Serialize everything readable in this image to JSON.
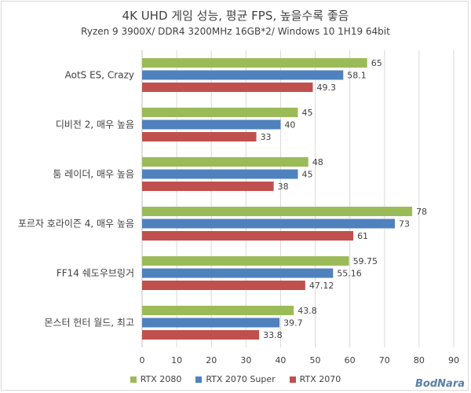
{
  "chart_data": {
    "type": "bar",
    "orientation": "horizontal",
    "title": "4K UHD 게임 성능, 평균 FPS, 높을수록 좋음",
    "subtitle": "Ryzen 9 3900X/ DDR4 3200MHz 16GB*2/ Windows 10 1H19 64bit",
    "categories": [
      "AotS ES, Crazy",
      "디비전 2, 매우 높음",
      "툼 레이더, 매우 높음",
      "포르자 호라이즌 4, 매우 높음",
      "FF14 쉐도우브링거",
      "몬스터 헌터 월드, 최고"
    ],
    "series": [
      {
        "name": "RTX 2080",
        "color": "#9bbb59",
        "values": [
          65,
          45,
          48,
          78,
          59.75,
          43.8
        ],
        "labels": [
          "65",
          "45",
          "48",
          "78",
          "59.75",
          "43.8"
        ]
      },
      {
        "name": "RTX 2070 Super",
        "color": "#4f81bd",
        "values": [
          58.1,
          40,
          45,
          73,
          55.16,
          39.7
        ],
        "labels": [
          "58.1",
          "40",
          "45",
          "73",
          "55.16",
          "39.7"
        ]
      },
      {
        "name": "RTX 2070",
        "color": "#c0504d",
        "values": [
          49.3,
          33,
          38,
          61,
          47.12,
          33.8
        ],
        "labels": [
          "49.3",
          "33",
          "38",
          "61",
          "47.12",
          "33.8"
        ]
      }
    ],
    "xlim": [
      0,
      90
    ],
    "xticks": [
      "0",
      "10",
      "20",
      "30",
      "40",
      "50",
      "60",
      "70",
      "80",
      "90"
    ],
    "grid": true,
    "legend": "bottom"
  },
  "watermark": "BodNara"
}
